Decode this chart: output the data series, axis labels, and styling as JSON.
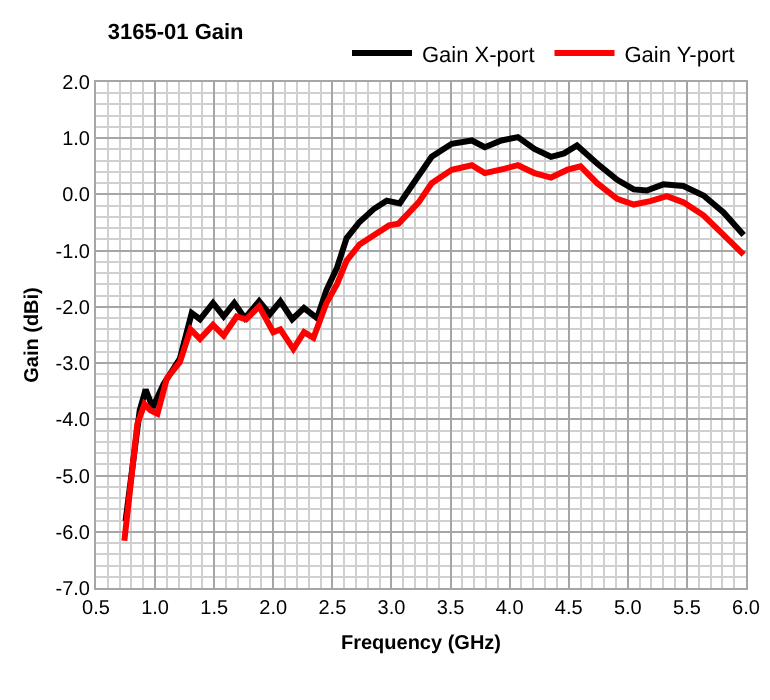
{
  "chart_data": {
    "type": "line",
    "title": "3165-01 Gain",
    "xlabel": "Frequency (GHz)",
    "ylabel": "Gain (dBi)",
    "xlim": [
      0.5,
      6.0
    ],
    "ylim": [
      -7.0,
      2.0
    ],
    "xticks": [
      {
        "value": 0.5,
        "label": "0.5"
      },
      {
        "value": 1,
        "label": "1.0"
      },
      {
        "value": 1.5,
        "label": "1.5"
      },
      {
        "value": 2,
        "label": "2.0"
      },
      {
        "value": 2.5,
        "label": "2.5"
      },
      {
        "value": 3,
        "label": "3.0"
      },
      {
        "value": 3.5,
        "label": "3.5"
      },
      {
        "value": 4,
        "label": "4.0"
      },
      {
        "value": 4.5,
        "label": "4.5"
      },
      {
        "value": 5,
        "label": "5.0"
      },
      {
        "value": 5.5,
        "label": "5.5"
      },
      {
        "value": 6,
        "label": "6.0"
      }
    ],
    "yticks": [
      {
        "value": -7,
        "label": "-7.0"
      },
      {
        "value": -6,
        "label": "-6.0"
      },
      {
        "value": -5,
        "label": "-5.0"
      },
      {
        "value": -4,
        "label": "-4.0"
      },
      {
        "value": -3,
        "label": "-3.0"
      },
      {
        "value": -2,
        "label": "-2.0"
      },
      {
        "value": -1,
        "label": "-1.0"
      },
      {
        "value": 0,
        "label": "0.0"
      },
      {
        "value": 1,
        "label": "1.0"
      },
      {
        "value": 2,
        "label": "2.0"
      }
    ],
    "grid": true,
    "legend": "top right",
    "marker": "none",
    "line_style": "solid",
    "series": [
      {
        "name": "Gain X-port",
        "color": "#000000",
        "x": [
          0.75,
          0.87,
          0.92,
          0.98,
          1.07,
          1.21,
          1.31,
          1.38,
          1.49,
          1.58,
          1.67,
          1.76,
          1.88,
          1.97,
          2.06,
          2.16,
          2.26,
          2.37,
          2.45,
          2.54,
          2.62,
          2.73,
          2.85,
          2.96,
          3.07,
          3.17,
          3.34,
          3.51,
          3.68,
          3.79,
          3.93,
          4.07,
          4.21,
          4.35,
          4.46,
          4.57,
          4.74,
          4.91,
          5.05,
          5.16,
          5.3,
          5.47,
          5.64,
          5.81,
          5.98
        ],
        "values": [
          -5.81,
          -3.84,
          -3.47,
          -3.79,
          -3.38,
          -2.92,
          -2.11,
          -2.22,
          -1.93,
          -2.17,
          -1.93,
          -2.2,
          -1.9,
          -2.13,
          -1.9,
          -2.22,
          -2.02,
          -2.2,
          -1.7,
          -1.3,
          -0.78,
          -0.49,
          -0.26,
          -0.11,
          -0.16,
          0.15,
          0.67,
          0.9,
          0.96,
          0.84,
          0.96,
          1.02,
          0.81,
          0.67,
          0.73,
          0.87,
          0.55,
          0.26,
          0.09,
          0.07,
          0.18,
          0.15,
          -0.02,
          -0.32,
          -0.72
        ]
      },
      {
        "name": "Gain Y-port",
        "color": "#ff0000",
        "x": [
          0.74,
          0.85,
          0.91,
          0.96,
          1.02,
          1.1,
          1.21,
          1.3,
          1.38,
          1.49,
          1.58,
          1.69,
          1.77,
          1.88,
          2.0,
          2.06,
          2.17,
          2.26,
          2.34,
          2.45,
          2.54,
          2.62,
          2.73,
          2.87,
          2.98,
          3.06,
          3.23,
          3.34,
          3.51,
          3.68,
          3.79,
          3.96,
          4.07,
          4.21,
          4.35,
          4.49,
          4.6,
          4.74,
          4.91,
          5.05,
          5.19,
          5.33,
          5.47,
          5.64,
          5.81,
          5.98
        ],
        "values": [
          -6.16,
          -4.08,
          -3.73,
          -3.84,
          -3.9,
          -3.27,
          -2.98,
          -2.4,
          -2.57,
          -2.32,
          -2.51,
          -2.17,
          -2.22,
          -1.99,
          -2.45,
          -2.4,
          -2.75,
          -2.45,
          -2.55,
          -1.93,
          -1.59,
          -1.18,
          -0.89,
          -0.7,
          -0.55,
          -0.52,
          -0.14,
          0.2,
          0.44,
          0.52,
          0.38,
          0.46,
          0.52,
          0.38,
          0.3,
          0.44,
          0.5,
          0.2,
          -0.08,
          -0.18,
          -0.12,
          -0.03,
          -0.14,
          -0.37,
          -0.72,
          -1.07
        ]
      }
    ]
  }
}
